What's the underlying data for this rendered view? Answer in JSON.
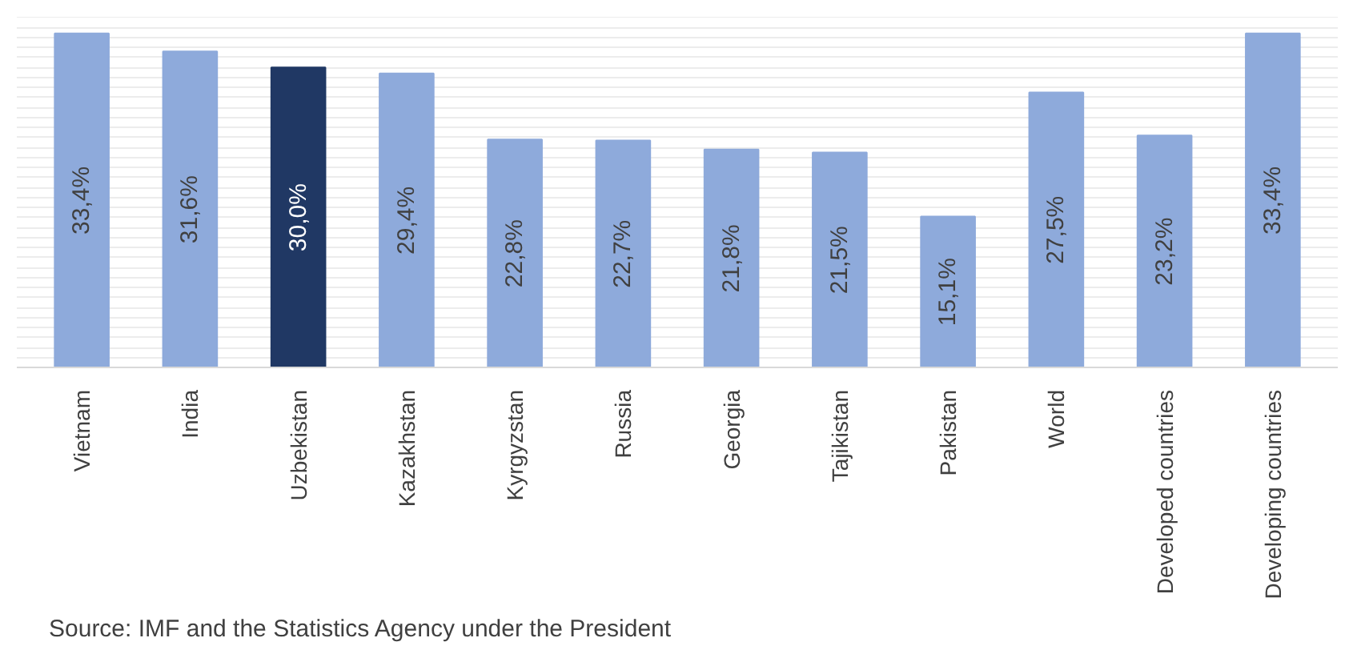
{
  "chart_data": {
    "type": "bar",
    "categories": [
      "Vietnam",
      "India",
      "Uzbekistan",
      "Kazakhstan",
      "Kyrgyzstan",
      "Russia",
      "Georgia",
      "Tajikistan",
      "Pakistan",
      "World",
      "Developed countries",
      "Developing countries"
    ],
    "values": [
      33.4,
      31.6,
      30.0,
      29.4,
      22.8,
      22.7,
      21.8,
      21.5,
      15.1,
      27.5,
      23.2,
      33.4
    ],
    "value_labels": [
      "33,4%",
      "31,6%",
      "30,0%",
      "29,4%",
      "22,8%",
      "22,7%",
      "21,8%",
      "21,5%",
      "15,1%",
      "27,5%",
      "23,2%",
      "33,4%"
    ],
    "colors": [
      "#8eaadb",
      "#8eaadb",
      "#203864",
      "#8eaadb",
      "#8eaadb",
      "#8eaadb",
      "#8eaadb",
      "#8eaadb",
      "#8eaadb",
      "#8eaadb",
      "#8eaadb",
      "#8eaadb"
    ],
    "grid": "y",
    "tick_labels": "x",
    "annotations": [
      "Source: IMF and the Statistics Agency under the President"
    ]
  }
}
